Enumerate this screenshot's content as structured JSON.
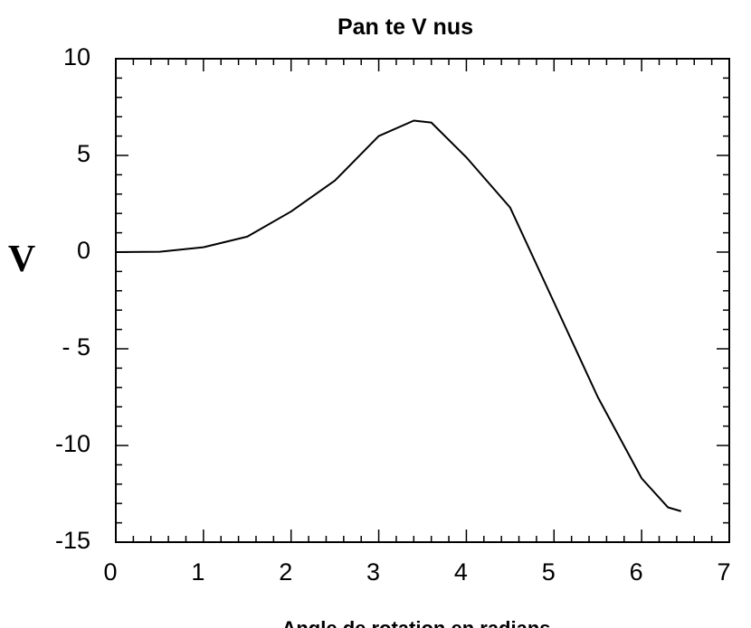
{
  "chart_data": {
    "type": "line",
    "title": "Pan te  V nus",
    "xlabel": "Angle de rotation en radians",
    "ylabel": "V",
    "x": [
      0,
      0.5,
      1,
      1.5,
      2,
      2.5,
      3,
      3.4,
      3.6,
      4,
      4.5,
      5,
      5.5,
      6,
      6.3,
      6.45
    ],
    "series": [
      {
        "name": "V",
        "color": "#000000",
        "values": [
          0,
          0.02,
          0.25,
          0.8,
          2.1,
          3.7,
          6.0,
          6.8,
          6.7,
          4.9,
          2.3,
          -2.6,
          -7.5,
          -11.7,
          -13.2,
          -13.4
        ]
      }
    ],
    "xlim": [
      0,
      7
    ],
    "xticks": [
      0,
      1,
      2,
      3,
      4,
      5,
      6,
      7
    ],
    "ylim": [
      -15,
      10
    ],
    "yticks": [
      {
        "value": -15,
        "label": "-15"
      },
      {
        "value": -10,
        "label": "-10"
      },
      {
        "value": -5,
        "label": "- 5"
      },
      0,
      5,
      10
    ],
    "grid": false
  }
}
